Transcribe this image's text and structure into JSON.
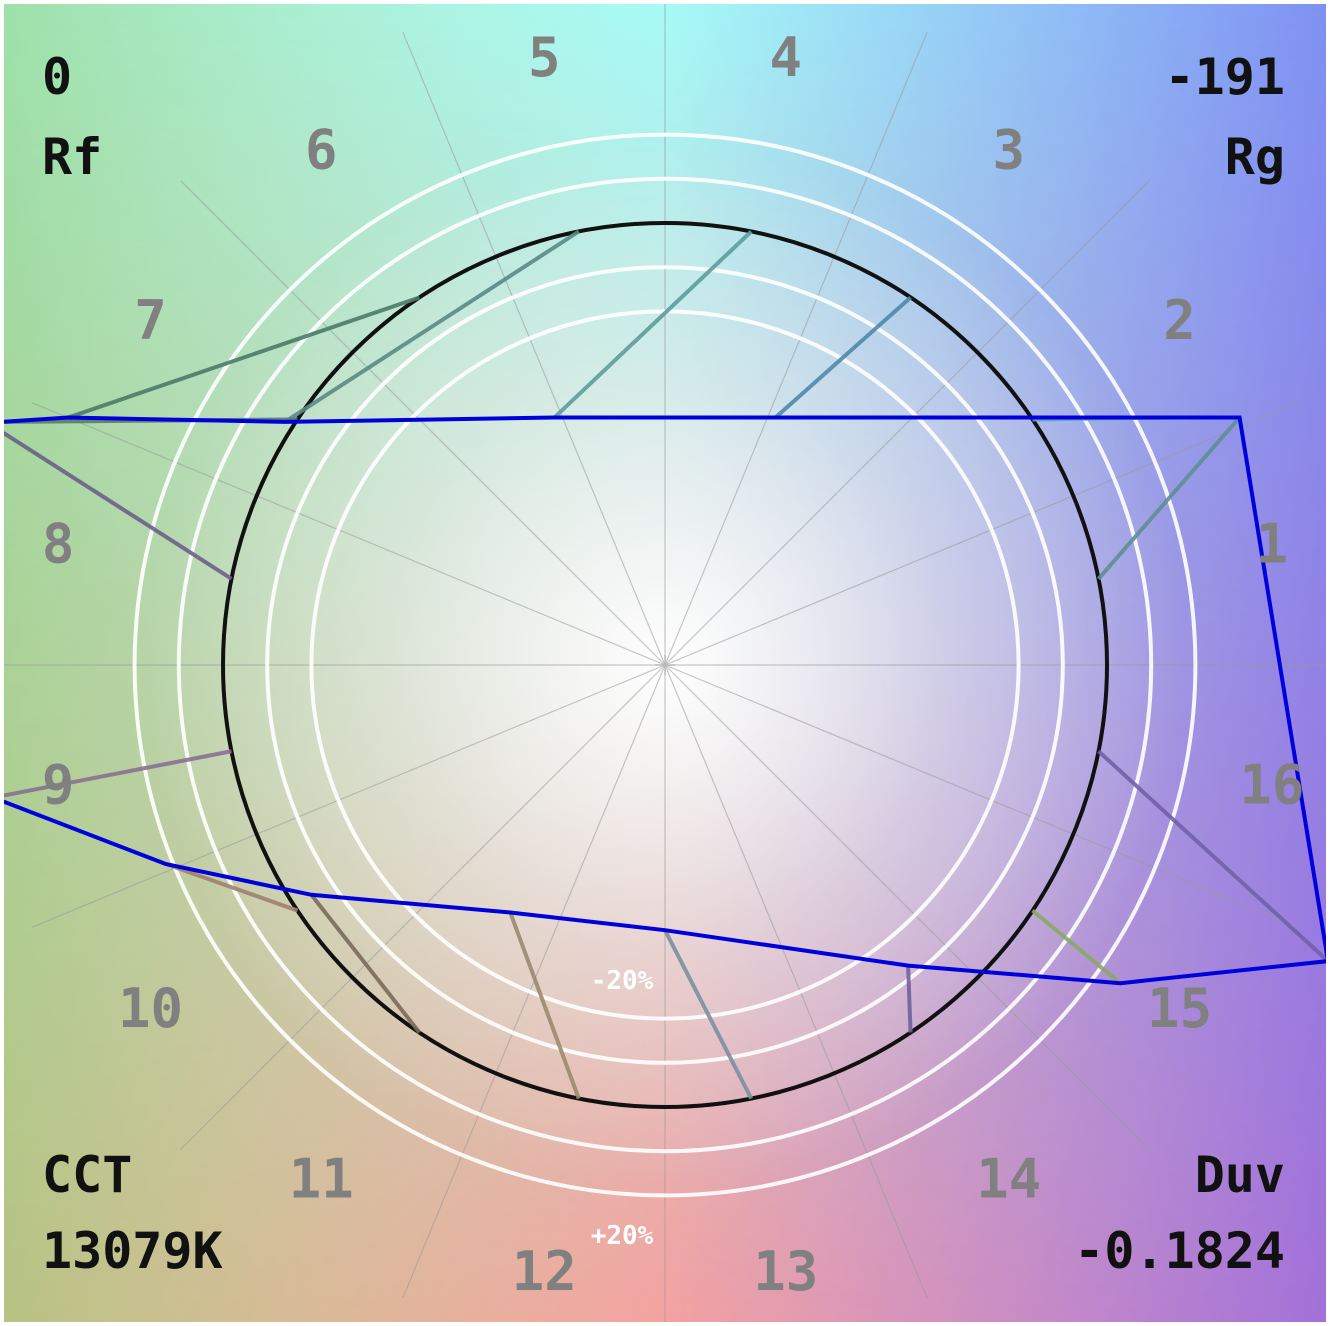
{
  "metrics": {
    "rf_label": "Rf",
    "rf_value": "0",
    "rg_label": "Rg",
    "rg_value": "-191",
    "cct_label": "CCT",
    "cct_value": "13079K",
    "duv_label": "Duv",
    "duv_value": "-0.1824"
  },
  "ring_labels": {
    "inner": "-20%",
    "outer": "+20%"
  },
  "colors": {
    "test_outline": "#0000dd",
    "reference_circle": "#111111",
    "rings": "#ffffff",
    "hue_numbers": "#808080"
  },
  "chart_data": {
    "type": "color-vector-graphic",
    "hue_bins": [
      "1",
      "2",
      "3",
      "4",
      "5",
      "6",
      "7",
      "8",
      "9",
      "10",
      "11",
      "12",
      "13",
      "14",
      "15",
      "16"
    ],
    "reference_radius": 1.0,
    "ring_levels": [
      -0.2,
      -0.1,
      0,
      0.1,
      0.2
    ],
    "test_points": [
      {
        "bin": "1",
        "x": 1.3,
        "y": 0.56
      },
      {
        "bin": "2",
        "x": 1.15,
        "y": 0.56
      },
      {
        "bin": "3",
        "x": 0.25,
        "y": 0.56
      },
      {
        "bin": "4",
        "x": -0.25,
        "y": 0.56
      },
      {
        "bin": "5",
        "x": -0.86,
        "y": 0.55
      },
      {
        "bin": "6",
        "x": -1.35,
        "y": 0.56
      },
      {
        "bin": "7",
        "x": -1.5,
        "y": 0.55
      },
      {
        "bin": "8",
        "x": -1.52,
        "y": 0.54
      },
      {
        "bin": "9",
        "x": -1.52,
        "y": -0.3
      },
      {
        "bin": "10",
        "x": -1.13,
        "y": -0.45
      },
      {
        "bin": "11",
        "x": -0.8,
        "y": -0.52
      },
      {
        "bin": "12",
        "x": -0.35,
        "y": -0.56
      },
      {
        "bin": "13",
        "x": 0.0,
        "y": -0.6
      },
      {
        "bin": "14",
        "x": 0.55,
        "y": -0.68
      },
      {
        "bin": "15",
        "x": 1.03,
        "y": -0.72
      },
      {
        "bin": "16",
        "x": 1.5,
        "y": -0.67
      }
    ]
  }
}
